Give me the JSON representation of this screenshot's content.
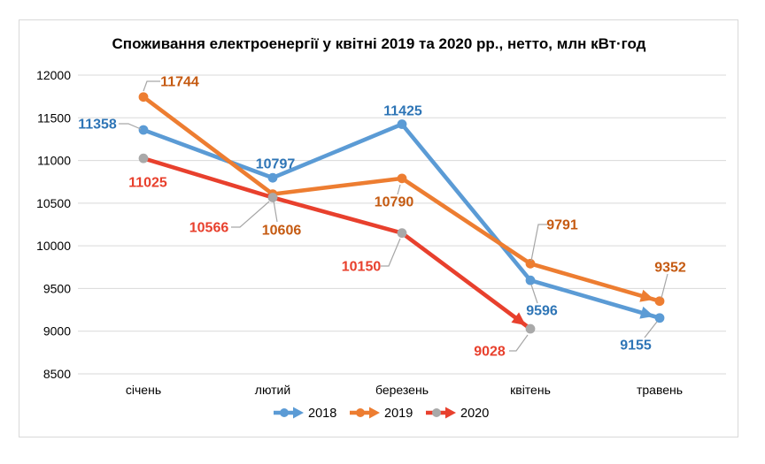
{
  "chart_data": {
    "type": "line",
    "title": "Споживання електроенергії у квітні 2019 та 2020 рр., нетто, млн кВт·год",
    "categories": [
      "січень",
      "лютий",
      "березень",
      "квітень",
      "травень"
    ],
    "series": [
      {
        "name": "2018",
        "values": [
          11358,
          10797,
          11425,
          9596,
          9155
        ],
        "color": "#5B9BD5",
        "marker_color": "#5B9BD5",
        "label_color": "#2E75B6"
      },
      {
        "name": "2019",
        "values": [
          11744,
          10606,
          10790,
          9791,
          9352
        ],
        "color": "#ED7D31",
        "marker_color": "#ED7D31",
        "label_color": "#C55A11"
      },
      {
        "name": "2020",
        "values": [
          11025,
          10566,
          10150,
          9028,
          null
        ],
        "color": "#E8402D",
        "marker_color": "#A9A9A9",
        "label_color": "#E8402D"
      }
    ],
    "ylim": [
      8500,
      12000
    ],
    "yticks": [
      12000,
      11500,
      11000,
      10500,
      10000,
      9500,
      9000,
      8500
    ],
    "grid": true,
    "legend_position": "bottom",
    "line_end": "arrow",
    "data_labels_shown": true,
    "colors": {
      "gridline": "#D9D9D9",
      "frame": "#D9D9D9",
      "leader": "#A6A6A6",
      "axis_text": "#000000",
      "legend_text": "#000000",
      "background": "#FFFFFF"
    }
  }
}
